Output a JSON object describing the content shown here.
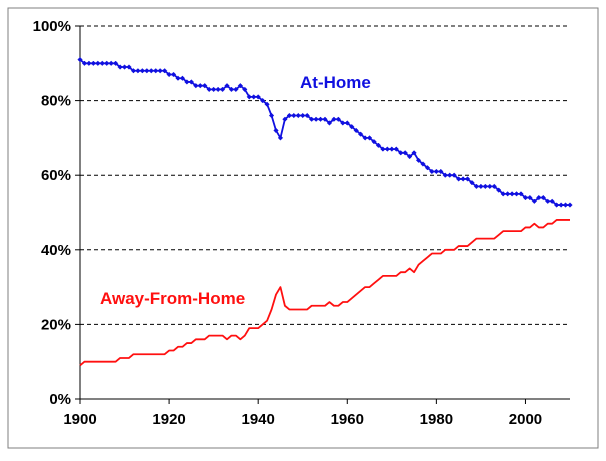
{
  "chart_data": {
    "type": "line",
    "x_ticks": [
      "1900",
      "1920",
      "1940",
      "1960",
      "1980",
      "2000"
    ],
    "y_ticks": [
      "0%",
      "20%",
      "40%",
      "60%",
      "80%",
      "100%"
    ],
    "xlim": [
      1900,
      2010
    ],
    "ylim": [
      0,
      100
    ],
    "grid": "horizontal dashed",
    "series": [
      {
        "name": "At-Home",
        "color": "#1010e0",
        "marker": "diamond",
        "points": [
          [
            1900,
            91
          ],
          [
            1901,
            90
          ],
          [
            1902,
            90
          ],
          [
            1903,
            90
          ],
          [
            1904,
            90
          ],
          [
            1905,
            90
          ],
          [
            1906,
            90
          ],
          [
            1907,
            90
          ],
          [
            1908,
            90
          ],
          [
            1909,
            89
          ],
          [
            1910,
            89
          ],
          [
            1911,
            89
          ],
          [
            1912,
            88
          ],
          [
            1913,
            88
          ],
          [
            1914,
            88
          ],
          [
            1915,
            88
          ],
          [
            1916,
            88
          ],
          [
            1917,
            88
          ],
          [
            1918,
            88
          ],
          [
            1919,
            88
          ],
          [
            1920,
            87
          ],
          [
            1921,
            87
          ],
          [
            1922,
            86
          ],
          [
            1923,
            86
          ],
          [
            1924,
            85
          ],
          [
            1925,
            85
          ],
          [
            1926,
            84
          ],
          [
            1927,
            84
          ],
          [
            1928,
            84
          ],
          [
            1929,
            83
          ],
          [
            1930,
            83
          ],
          [
            1931,
            83
          ],
          [
            1932,
            83
          ],
          [
            1933,
            84
          ],
          [
            1934,
            83
          ],
          [
            1935,
            83
          ],
          [
            1936,
            84
          ],
          [
            1937,
            83
          ],
          [
            1938,
            81
          ],
          [
            1939,
            81
          ],
          [
            1940,
            81
          ],
          [
            1941,
            80
          ],
          [
            1942,
            79
          ],
          [
            1943,
            76
          ],
          [
            1944,
            72
          ],
          [
            1945,
            70
          ],
          [
            1946,
            75
          ],
          [
            1947,
            76
          ],
          [
            1948,
            76
          ],
          [
            1949,
            76
          ],
          [
            1950,
            76
          ],
          [
            1951,
            76
          ],
          [
            1952,
            75
          ],
          [
            1953,
            75
          ],
          [
            1954,
            75
          ],
          [
            1955,
            75
          ],
          [
            1956,
            74
          ],
          [
            1957,
            75
          ],
          [
            1958,
            75
          ],
          [
            1959,
            74
          ],
          [
            1960,
            74
          ],
          [
            1961,
            73
          ],
          [
            1962,
            72
          ],
          [
            1963,
            71
          ],
          [
            1964,
            70
          ],
          [
            1965,
            70
          ],
          [
            1966,
            69
          ],
          [
            1967,
            68
          ],
          [
            1968,
            67
          ],
          [
            1969,
            67
          ],
          [
            1970,
            67
          ],
          [
            1971,
            67
          ],
          [
            1972,
            66
          ],
          [
            1973,
            66
          ],
          [
            1974,
            65
          ],
          [
            1975,
            66
          ],
          [
            1976,
            64
          ],
          [
            1977,
            63
          ],
          [
            1978,
            62
          ],
          [
            1979,
            61
          ],
          [
            1980,
            61
          ],
          [
            1981,
            61
          ],
          [
            1982,
            60
          ],
          [
            1983,
            60
          ],
          [
            1984,
            60
          ],
          [
            1985,
            59
          ],
          [
            1986,
            59
          ],
          [
            1987,
            59
          ],
          [
            1988,
            58
          ],
          [
            1989,
            57
          ],
          [
            1990,
            57
          ],
          [
            1991,
            57
          ],
          [
            1992,
            57
          ],
          [
            1993,
            57
          ],
          [
            1994,
            56
          ],
          [
            1995,
            55
          ],
          [
            1996,
            55
          ],
          [
            1997,
            55
          ],
          [
            1998,
            55
          ],
          [
            1999,
            55
          ],
          [
            2000,
            54
          ],
          [
            2001,
            54
          ],
          [
            2002,
            53
          ],
          [
            2003,
            54
          ],
          [
            2004,
            54
          ],
          [
            2005,
            53
          ],
          [
            2006,
            53
          ],
          [
            2007,
            52
          ],
          [
            2008,
            52
          ],
          [
            2009,
            52
          ],
          [
            2010,
            52
          ]
        ]
      },
      {
        "name": "Away-From-Home",
        "color": "#ff1010",
        "marker": "none",
        "points": [
          [
            1900,
            9
          ],
          [
            1901,
            10
          ],
          [
            1902,
            10
          ],
          [
            1903,
            10
          ],
          [
            1904,
            10
          ],
          [
            1905,
            10
          ],
          [
            1906,
            10
          ],
          [
            1907,
            10
          ],
          [
            1908,
            10
          ],
          [
            1909,
            11
          ],
          [
            1910,
            11
          ],
          [
            1911,
            11
          ],
          [
            1912,
            12
          ],
          [
            1913,
            12
          ],
          [
            1914,
            12
          ],
          [
            1915,
            12
          ],
          [
            1916,
            12
          ],
          [
            1917,
            12
          ],
          [
            1918,
            12
          ],
          [
            1919,
            12
          ],
          [
            1920,
            13
          ],
          [
            1921,
            13
          ],
          [
            1922,
            14
          ],
          [
            1923,
            14
          ],
          [
            1924,
            15
          ],
          [
            1925,
            15
          ],
          [
            1926,
            16
          ],
          [
            1927,
            16
          ],
          [
            1928,
            16
          ],
          [
            1929,
            17
          ],
          [
            1930,
            17
          ],
          [
            1931,
            17
          ],
          [
            1932,
            17
          ],
          [
            1933,
            16
          ],
          [
            1934,
            17
          ],
          [
            1935,
            17
          ],
          [
            1936,
            16
          ],
          [
            1937,
            17
          ],
          [
            1938,
            19
          ],
          [
            1939,
            19
          ],
          [
            1940,
            19
          ],
          [
            1941,
            20
          ],
          [
            1942,
            21
          ],
          [
            1943,
            24
          ],
          [
            1944,
            28
          ],
          [
            1945,
            30
          ],
          [
            1946,
            25
          ],
          [
            1947,
            24
          ],
          [
            1948,
            24
          ],
          [
            1949,
            24
          ],
          [
            1950,
            24
          ],
          [
            1951,
            24
          ],
          [
            1952,
            25
          ],
          [
            1953,
            25
          ],
          [
            1954,
            25
          ],
          [
            1955,
            25
          ],
          [
            1956,
            26
          ],
          [
            1957,
            25
          ],
          [
            1958,
            25
          ],
          [
            1959,
            26
          ],
          [
            1960,
            26
          ],
          [
            1961,
            27
          ],
          [
            1962,
            28
          ],
          [
            1963,
            29
          ],
          [
            1964,
            30
          ],
          [
            1965,
            30
          ],
          [
            1966,
            31
          ],
          [
            1967,
            32
          ],
          [
            1968,
            33
          ],
          [
            1969,
            33
          ],
          [
            1970,
            33
          ],
          [
            1971,
            33
          ],
          [
            1972,
            34
          ],
          [
            1973,
            34
          ],
          [
            1974,
            35
          ],
          [
            1975,
            34
          ],
          [
            1976,
            36
          ],
          [
            1977,
            37
          ],
          [
            1978,
            38
          ],
          [
            1979,
            39
          ],
          [
            1980,
            39
          ],
          [
            1981,
            39
          ],
          [
            1982,
            40
          ],
          [
            1983,
            40
          ],
          [
            1984,
            40
          ],
          [
            1985,
            41
          ],
          [
            1986,
            41
          ],
          [
            1987,
            41
          ],
          [
            1988,
            42
          ],
          [
            1989,
            43
          ],
          [
            1990,
            43
          ],
          [
            1991,
            43
          ],
          [
            1992,
            43
          ],
          [
            1993,
            43
          ],
          [
            1994,
            44
          ],
          [
            1995,
            45
          ],
          [
            1996,
            45
          ],
          [
            1997,
            45
          ],
          [
            1998,
            45
          ],
          [
            1999,
            45
          ],
          [
            2000,
            46
          ],
          [
            2001,
            46
          ],
          [
            2002,
            47
          ],
          [
            2003,
            46
          ],
          [
            2004,
            46
          ],
          [
            2005,
            47
          ],
          [
            2006,
            47
          ],
          [
            2007,
            48
          ],
          [
            2008,
            48
          ],
          [
            2009,
            48
          ],
          [
            2010,
            48
          ]
        ]
      }
    ]
  }
}
